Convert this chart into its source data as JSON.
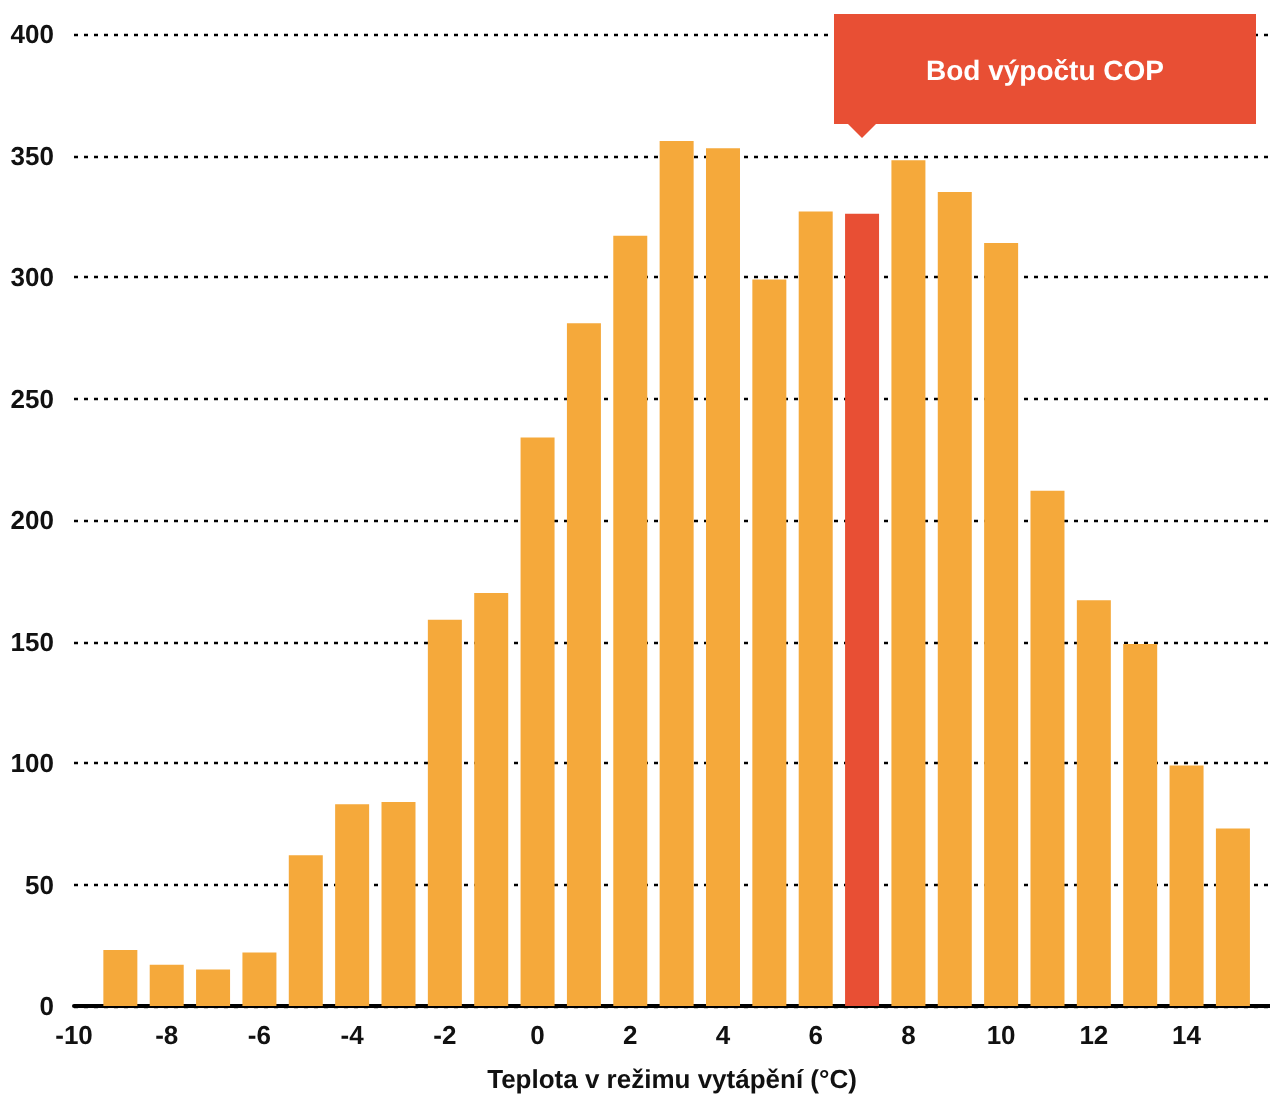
{
  "chart_data": {
    "type": "bar",
    "xlabel": "Teplota v režimu vytápění (°C)",
    "x": [
      -9,
      -8,
      -7,
      -6,
      -5,
      -4,
      -3,
      -2,
      -1,
      0,
      1,
      2,
      3,
      4,
      5,
      6,
      7,
      8,
      9,
      10,
      11,
      12,
      13,
      14,
      15
    ],
    "values": [
      23,
      17,
      15,
      22,
      62,
      83,
      84,
      159,
      170,
      234,
      281,
      317,
      356,
      353,
      299,
      327,
      326,
      348,
      335,
      314,
      212,
      167,
      149,
      99,
      73
    ],
    "colors": [
      "#f5a93b",
      "#f5a93b",
      "#f5a93b",
      "#f5a93b",
      "#f5a93b",
      "#f5a93b",
      "#f5a93b",
      "#f5a93b",
      "#f5a93b",
      "#f5a93b",
      "#f5a93b",
      "#f5a93b",
      "#f5a93b",
      "#f5a93b",
      "#f5a93b",
      "#f5a93b",
      "#e84f34",
      "#f5a93b",
      "#f5a93b",
      "#f5a93b",
      "#f5a93b",
      "#f5a93b",
      "#f5a93b",
      "#f5a93b",
      "#f5a93b"
    ],
    "xlim": [
      -10,
      15.8
    ],
    "xticks": [
      -10,
      -8,
      -6,
      -4,
      -2,
      0,
      2,
      4,
      6,
      8,
      10,
      12,
      14
    ],
    "ylim": [
      0,
      400
    ],
    "yticks": [
      0,
      50,
      100,
      150,
      200,
      250,
      300,
      350,
      400
    ],
    "grid": "y",
    "annotations": [
      "Bod výpočtu COP"
    ]
  }
}
